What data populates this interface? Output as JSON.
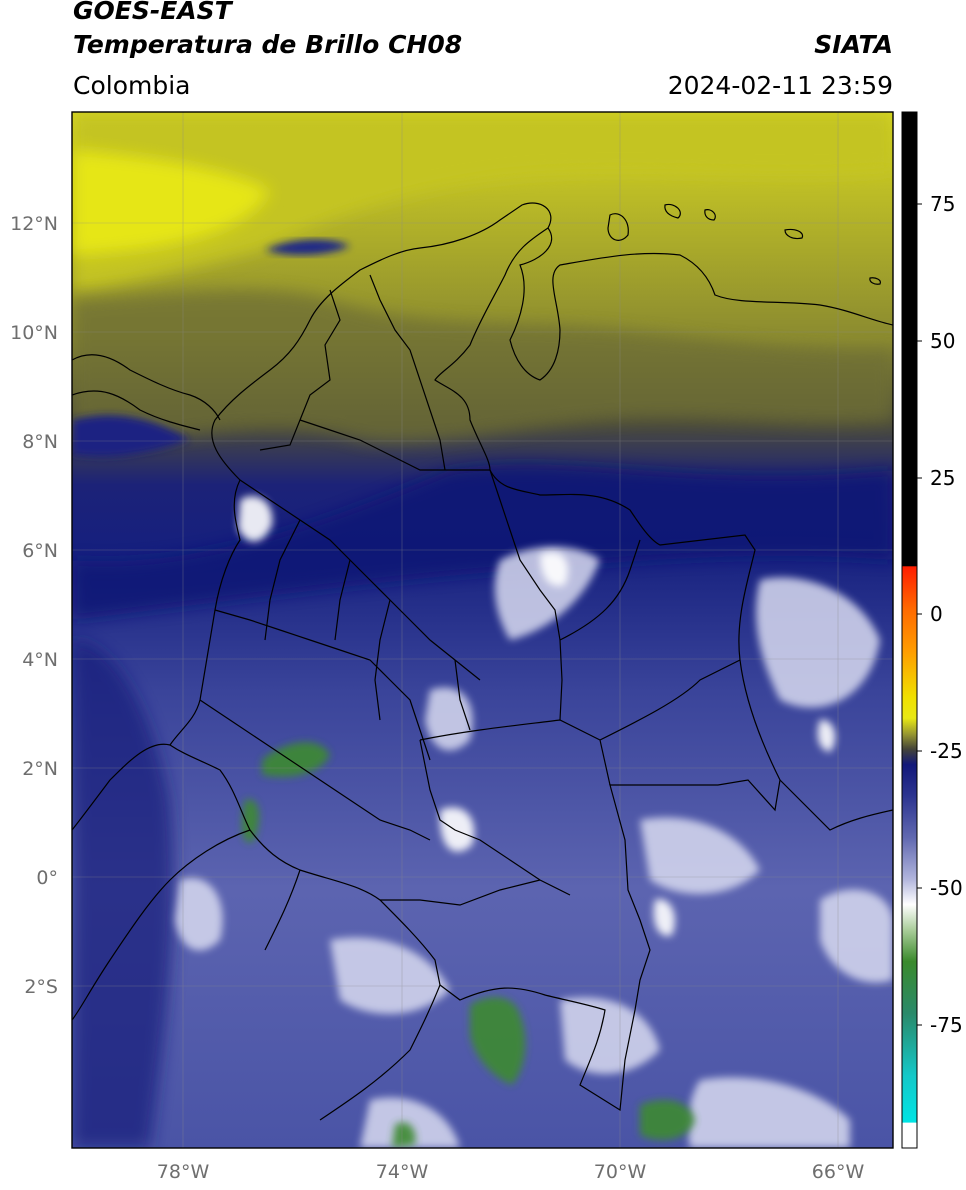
{
  "header": {
    "satellite": "GOES-EAST",
    "product": "Temperatura de Brillo CH08",
    "agency": "SIATA",
    "region": "Colombia",
    "datetime": "2024-02-11 23:59"
  },
  "axes": {
    "lat_labels": [
      "12°N",
      "10°N",
      "8°N",
      "6°N",
      "4°N",
      "2°N",
      "0°",
      "2°S"
    ],
    "lon_labels": [
      "78°W",
      "74°W",
      "70°W",
      "66°W"
    ]
  },
  "colorbar": {
    "tick_labels": [
      "75",
      "50",
      "25",
      "0",
      "-25",
      "-50",
      "-75"
    ],
    "colors": {
      "cold": "#3a9a2a",
      "white": "#ffffff",
      "light_blue": "#b8bcdc",
      "mid_blue": "#4a54a8",
      "navy": "#141c7c",
      "dark_olive": "#3c3c2c",
      "olive": "#8c8c2c",
      "yellow": "#e6e614",
      "orange": "#ff8c00",
      "red": "#ff1e00",
      "cyan": "#00dcdc",
      "black": "#000000"
    }
  }
}
